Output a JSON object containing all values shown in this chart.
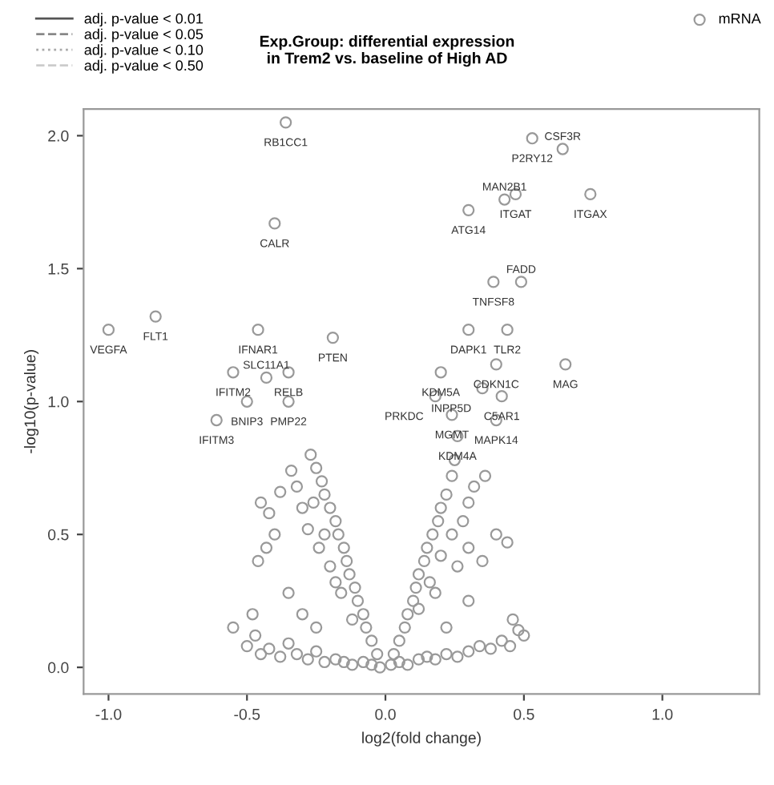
{
  "chart_data": {
    "type": "scatter",
    "title": "Exp.Group: differential expression\nin Trem2 vs. baseline of High AD",
    "xlabel": "log2(fold change)",
    "ylabel": "-log10(p-value)",
    "xlim": [
      -1.09,
      1.35
    ],
    "ylim": [
      -0.1,
      2.1
    ],
    "xticks": [
      {
        "value": -1,
        "label": "-1.0"
      },
      {
        "value": -0.5,
        "label": "-0.5"
      },
      {
        "value": 0,
        "label": "0.0"
      },
      {
        "value": 0.5,
        "label": "0.5"
      },
      {
        "value": 1,
        "label": "1.0"
      }
    ],
    "yticks": [
      {
        "value": 0,
        "label": "0.0"
      },
      {
        "value": 0.5,
        "label": "0.5"
      },
      {
        "value": 1,
        "label": "1.0"
      },
      {
        "value": 1.5,
        "label": "1.5"
      },
      {
        "value": 2,
        "label": "2.0"
      }
    ],
    "grid": false,
    "legend": "top",
    "series": [
      {
        "name": "adj. p-value < 0.01",
        "type": "line",
        "line_style": "solid",
        "color": "#555555"
      },
      {
        "name": "adj. p-value < 0.05",
        "type": "line",
        "line_style": "dashed",
        "color": "#888888"
      },
      {
        "name": "adj. p-value < 0.10",
        "type": "line",
        "line_style": "dotted",
        "color": "#aaaaaa"
      },
      {
        "name": "adj. p-value < 0.50",
        "type": "line",
        "line_style": "dashed",
        "color": "#cccccc"
      },
      {
        "name": "mRNA",
        "marker": "circle",
        "color": "#999999",
        "x": [
          -0.36,
          0.53,
          0.64,
          0.74,
          0.47,
          0.43,
          0.3,
          -0.4,
          -1.0,
          -0.83,
          -0.46,
          -0.19,
          -0.55,
          -0.43,
          -0.35,
          -0.5,
          -0.35,
          -0.61,
          0.39,
          0.49,
          0.3,
          0.44,
          0.4,
          0.65,
          0.2,
          0.42,
          0.35,
          0.18,
          0.24,
          0.4,
          0.26,
          -0.55,
          -0.5,
          -0.47,
          -0.45,
          -0.42,
          -0.38,
          -0.35,
          -0.32,
          -0.28,
          -0.25,
          -0.22,
          -0.18,
          -0.15,
          -0.12,
          -0.08,
          -0.05,
          -0.02,
          0.02,
          0.05,
          0.08,
          0.12,
          0.15,
          0.18,
          0.22,
          0.26,
          0.3,
          0.34,
          0.38,
          0.42,
          0.45,
          0.48,
          0.5,
          0.46,
          -0.03,
          -0.05,
          -0.07,
          -0.08,
          -0.1,
          -0.11,
          -0.13,
          -0.14,
          -0.15,
          -0.17,
          -0.18,
          -0.2,
          -0.22,
          -0.23,
          -0.25,
          -0.27,
          -0.12,
          -0.16,
          -0.2,
          -0.24,
          -0.28,
          -0.3,
          -0.32,
          -0.34,
          -0.18,
          -0.22,
          -0.26,
          -0.45,
          -0.42,
          -0.4,
          -0.43,
          -0.46,
          -0.35,
          -0.48,
          -0.38,
          0.03,
          0.05,
          0.07,
          0.08,
          0.1,
          0.11,
          0.12,
          0.14,
          0.15,
          0.17,
          0.19,
          0.2,
          0.22,
          0.24,
          0.25,
          0.12,
          0.16,
          0.2,
          0.24,
          0.28,
          0.3,
          0.32,
          0.36,
          0.26,
          0.3,
          0.18,
          0.4,
          0.44,
          0.35,
          0.22,
          0.3,
          -0.3,
          -0.25
        ],
        "values": [
          2.05,
          1.99,
          1.95,
          1.78,
          1.78,
          1.76,
          1.72,
          1.67,
          1.27,
          1.32,
          1.27,
          1.24,
          1.11,
          1.09,
          1.11,
          1.0,
          1.0,
          0.93,
          1.45,
          1.45,
          1.27,
          1.27,
          1.14,
          1.14,
          1.11,
          1.02,
          1.05,
          1.02,
          0.95,
          0.93,
          0.87,
          0.15,
          0.08,
          0.12,
          0.05,
          0.07,
          0.04,
          0.09,
          0.05,
          0.03,
          0.06,
          0.02,
          0.03,
          0.02,
          0.01,
          0.02,
          0.01,
          0.0,
          0.01,
          0.02,
          0.01,
          0.03,
          0.04,
          0.03,
          0.05,
          0.04,
          0.06,
          0.08,
          0.07,
          0.1,
          0.08,
          0.14,
          0.12,
          0.18,
          0.05,
          0.1,
          0.15,
          0.2,
          0.25,
          0.3,
          0.35,
          0.4,
          0.45,
          0.5,
          0.55,
          0.6,
          0.65,
          0.7,
          0.75,
          0.8,
          0.18,
          0.28,
          0.38,
          0.45,
          0.52,
          0.6,
          0.68,
          0.74,
          0.32,
          0.5,
          0.62,
          0.62,
          0.58,
          0.5,
          0.45,
          0.4,
          0.28,
          0.2,
          0.66,
          0.05,
          0.1,
          0.15,
          0.2,
          0.25,
          0.3,
          0.35,
          0.4,
          0.45,
          0.5,
          0.55,
          0.6,
          0.65,
          0.72,
          0.78,
          0.22,
          0.32,
          0.42,
          0.5,
          0.55,
          0.62,
          0.68,
          0.72,
          0.38,
          0.45,
          0.28,
          0.5,
          0.47,
          0.4,
          0.15,
          0.25,
          0.2,
          0.15
        ]
      }
    ],
    "annotations": [
      {
        "text": "RB1CC1",
        "x": -0.36,
        "y": 2.05
      },
      {
        "text": "P2RY12",
        "x": 0.53,
        "y": 1.99
      },
      {
        "text": "CSF3R",
        "x": 0.64,
        "y": 1.95
      },
      {
        "text": "ITGAX",
        "x": 0.74,
        "y": 1.78
      },
      {
        "text": "ITGAT",
        "x": 0.47,
        "y": 1.78
      },
      {
        "text": "MAN2B1",
        "x": 0.43,
        "y": 1.76
      },
      {
        "text": "ATG14",
        "x": 0.3,
        "y": 1.72
      },
      {
        "text": "CALR",
        "x": -0.4,
        "y": 1.67
      },
      {
        "text": "VEGFA",
        "x": -1.0,
        "y": 1.27
      },
      {
        "text": "FLT1",
        "x": -0.83,
        "y": 1.32
      },
      {
        "text": "IFNAR1",
        "x": -0.46,
        "y": 1.27
      },
      {
        "text": "PTEN",
        "x": -0.19,
        "y": 1.24
      },
      {
        "text": "IFITM2",
        "x": -0.55,
        "y": 1.11
      },
      {
        "text": "SLC11A1",
        "x": -0.43,
        "y": 1.09
      },
      {
        "text": "RELB",
        "x": -0.35,
        "y": 1.11
      },
      {
        "text": "BNIP3",
        "x": -0.5,
        "y": 1.0
      },
      {
        "text": "PMP22",
        "x": -0.35,
        "y": 1.0
      },
      {
        "text": "IFITM3",
        "x": -0.61,
        "y": 0.93
      },
      {
        "text": "TNFSF8",
        "x": 0.39,
        "y": 1.45
      },
      {
        "text": "FADD",
        "x": 0.49,
        "y": 1.45
      },
      {
        "text": "DAPK1",
        "x": 0.3,
        "y": 1.27
      },
      {
        "text": "TLR2",
        "x": 0.44,
        "y": 1.27
      },
      {
        "text": "CDKN1C",
        "x": 0.4,
        "y": 1.14
      },
      {
        "text": "MAG",
        "x": 0.65,
        "y": 1.14
      },
      {
        "text": "KDM5A",
        "x": 0.2,
        "y": 1.11
      },
      {
        "text": "C5AR1",
        "x": 0.42,
        "y": 1.02
      },
      {
        "text": "INPP5D",
        "x": 0.35,
        "y": 1.05
      },
      {
        "text": "PRKDC",
        "x": 0.18,
        "y": 1.02
      },
      {
        "text": "MGMT",
        "x": 0.24,
        "y": 0.95
      },
      {
        "text": "MAPK14",
        "x": 0.4,
        "y": 0.93
      },
      {
        "text": "KDM4A",
        "x": 0.26,
        "y": 0.87
      }
    ]
  }
}
